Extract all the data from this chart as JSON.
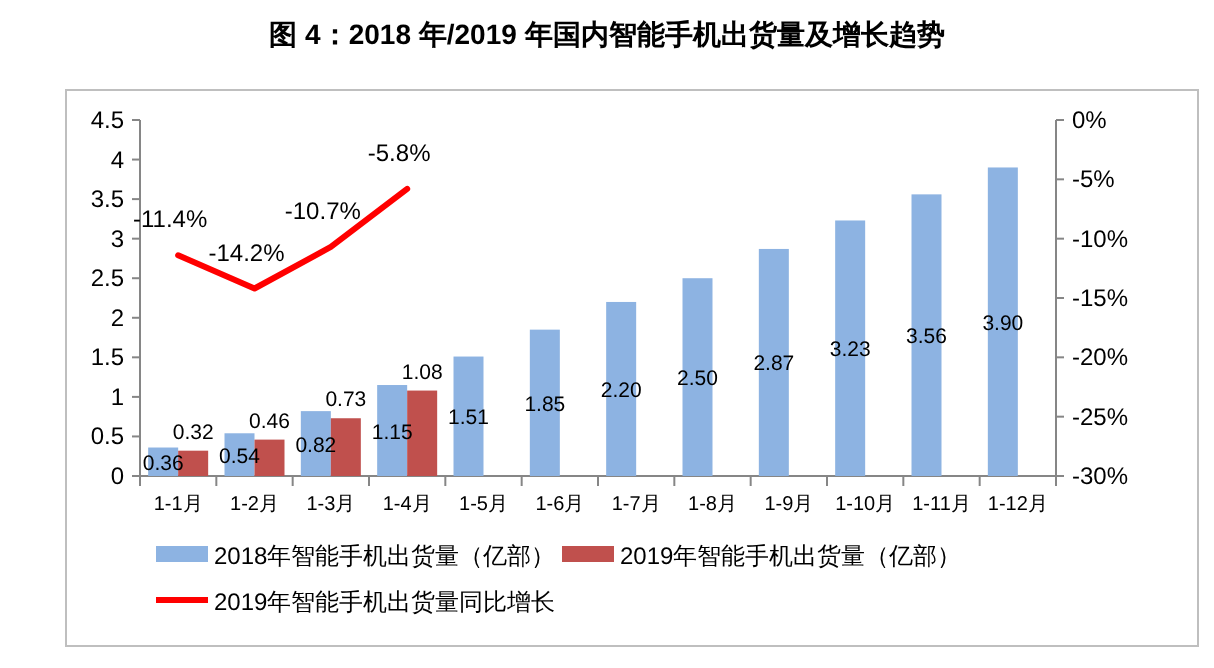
{
  "chart_data": {
    "type": "bar",
    "title": "图 4：2018 年/2019 年国内智能手机出货量及增长趋势",
    "categories": [
      "1-1月",
      "1-2月",
      "1-3月",
      "1-4月",
      "1-5月",
      "1-6月",
      "1-7月",
      "1-8月",
      "1-9月",
      "1-10月",
      "1-11月",
      "1-12月"
    ],
    "series": [
      {
        "name": "2018年智能手机出货量（亿部）",
        "color": "#8db3e2",
        "values": [
          0.36,
          0.54,
          0.82,
          1.15,
          1.51,
          1.85,
          2.2,
          2.5,
          2.87,
          3.23,
          3.56,
          3.9
        ],
        "value_labels": [
          "0.36",
          "0.54",
          "0.82",
          "1.15",
          "1.51",
          "1.85",
          "2.20",
          "2.50",
          "2.87",
          "3.23",
          "3.56",
          "3.90"
        ]
      },
      {
        "name": "2019年智能手机出货量（亿部）",
        "color": "#c0504d",
        "values": [
          0.32,
          0.46,
          0.73,
          1.08,
          null,
          null,
          null,
          null,
          null,
          null,
          null,
          null
        ],
        "value_labels": [
          "0.32",
          "0.46",
          "0.73",
          "1.08",
          null,
          null,
          null,
          null,
          null,
          null,
          null,
          null
        ]
      },
      {
        "name": "2019年智能手机出货量同比增长",
        "type": "line",
        "axis": "y2",
        "color": "#ff0000",
        "values": [
          -11.4,
          -14.2,
          -10.7,
          -5.8,
          null,
          null,
          null,
          null,
          null,
          null,
          null,
          null
        ],
        "value_labels": [
          "-11.4%",
          "-14.2%",
          "-10.7%",
          "-5.8%",
          null,
          null,
          null,
          null,
          null,
          null,
          null,
          null
        ]
      }
    ],
    "ylim": [
      0,
      4.5
    ],
    "yticks": [
      0,
      0.5,
      1,
      1.5,
      2,
      2.5,
      3,
      3.5,
      4,
      4.5
    ],
    "y2lim": [
      -30,
      0
    ],
    "y2ticks": [
      {
        "value": -30,
        "label": "-30%"
      },
      {
        "value": -25,
        "label": "-25%"
      },
      {
        "value": -20,
        "label": "-20%"
      },
      {
        "value": -15,
        "label": "-15%"
      },
      {
        "value": -10,
        "label": "-10%"
      },
      {
        "value": -5,
        "label": "-5%"
      },
      {
        "value": 0,
        "label": "0%"
      }
    ],
    "grid": false,
    "legend": "bottom",
    "marker": "none",
    "line_style": "solid"
  }
}
